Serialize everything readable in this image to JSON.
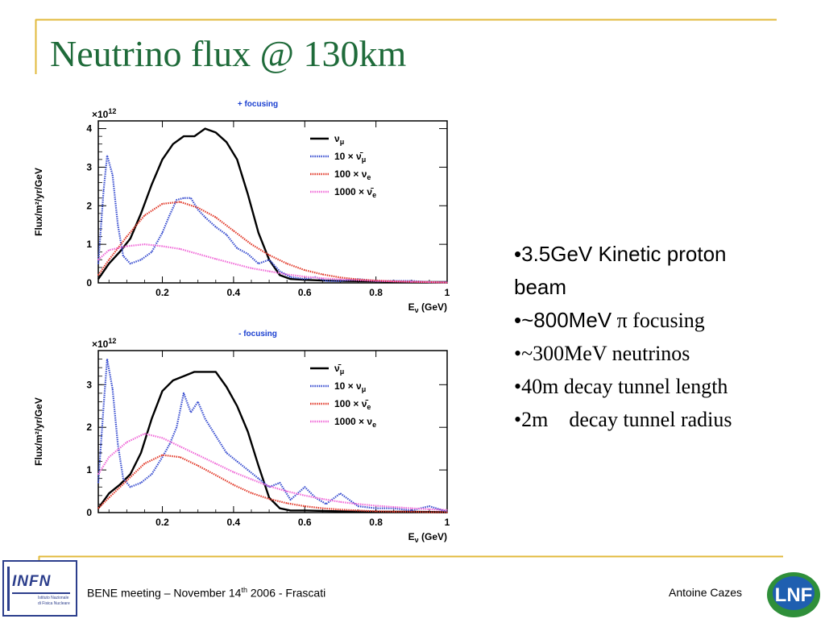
{
  "slide": {
    "title": "Neutrino flux @ 130km",
    "accent_color": "#e2b93b",
    "title_color": "#1f6b3a"
  },
  "bullets": [
    {
      "parts": [
        "•",
        "3.5GeV Kinetic proton"
      ],
      "style": "sans"
    },
    {
      "parts": [
        "beam"
      ],
      "style": "sans"
    },
    {
      "parts": [
        "•",
        "~800MeV",
        " π focusing"
      ],
      "style": "mixed"
    },
    {
      "parts": [
        "•",
        "~300MeV neutrinos"
      ],
      "style": "serif"
    },
    {
      "parts": [
        "•",
        "40m decay tunnel length"
      ],
      "style": "serif"
    },
    {
      "parts": [
        "•",
        "2m    decay tunnel radius"
      ],
      "style": "serif"
    }
  ],
  "footer": {
    "meeting_prefix": "BENE meeting – November 14",
    "meeting_sup": "th",
    "meeting_suffix": " 2006 - Frascati",
    "author": "Antoine Cazes",
    "logo_left": "INFN",
    "logo_left_sub1": "Istituto Nazionale",
    "logo_left_sub2": "di Fisica Nucleare",
    "logo_right": "LNF"
  },
  "chart_data": [
    {
      "type": "line",
      "title": "+ focusing",
      "xlabel_main": "E",
      "xlabel_sub": "ν",
      "xlabel_rest": " (GeV)",
      "ylabel": "Flux/m²/yr/GeV",
      "yscale_label": "×10",
      "yscale_exp": "12",
      "xlim": [
        0.02,
        1.0
      ],
      "ylim": [
        0,
        4.2
      ],
      "xticks": [
        0.2,
        0.4,
        0.6,
        0.8,
        1
      ],
      "xtick_labels": [
        "0.2",
        "0.4",
        "0.6",
        "0.8",
        "1"
      ],
      "yticks": [
        0,
        1,
        2,
        3,
        4
      ],
      "ytick_labels": [
        "0",
        "1",
        "2",
        "3",
        "4"
      ],
      "legend_position": "top-right",
      "series": [
        {
          "name": "νμ",
          "label_parts": [
            "",
            "ν",
            "μ",
            ""
          ],
          "color": "#000000",
          "style": "solid",
          "x": [
            0.02,
            0.05,
            0.08,
            0.11,
            0.14,
            0.17,
            0.2,
            0.23,
            0.26,
            0.29,
            0.32,
            0.35,
            0.38,
            0.41,
            0.44,
            0.47,
            0.5,
            0.53,
            0.56,
            0.6,
            0.65,
            0.7,
            0.8,
            0.9,
            1.0
          ],
          "y": [
            0.1,
            0.5,
            0.8,
            1.15,
            1.8,
            2.55,
            3.2,
            3.6,
            3.8,
            3.8,
            4.0,
            3.9,
            3.65,
            3.2,
            2.3,
            1.3,
            0.6,
            0.2,
            0.1,
            0.08,
            0.06,
            0.05,
            0.04,
            0.02,
            0.02
          ]
        },
        {
          "name": "10×ν̄μ",
          "label_parts": [
            "10 × ",
            "ν̄",
            "μ",
            ""
          ],
          "color": "#3a4fd0",
          "style": "dotted",
          "x": [
            0.02,
            0.035,
            0.045,
            0.06,
            0.075,
            0.09,
            0.11,
            0.14,
            0.17,
            0.2,
            0.22,
            0.24,
            0.26,
            0.28,
            0.3,
            0.32,
            0.35,
            0.38,
            0.41,
            0.44,
            0.47,
            0.5,
            0.53,
            0.56,
            0.6,
            0.63,
            0.66,
            0.7,
            0.75,
            0.8,
            0.85,
            0.9,
            0.95,
            1.0
          ],
          "y": [
            0.5,
            2.4,
            3.3,
            2.8,
            1.5,
            0.7,
            0.5,
            0.6,
            0.8,
            1.3,
            1.75,
            2.15,
            2.2,
            2.2,
            1.9,
            1.7,
            1.45,
            1.25,
            0.9,
            0.75,
            0.5,
            0.6,
            0.3,
            0.15,
            0.1,
            0.15,
            0.05,
            0.05,
            0.1,
            0.05,
            0.05,
            0.05,
            0.02,
            0.02
          ]
        },
        {
          "name": "100×νe",
          "label_parts": [
            "100 × ",
            "ν",
            "e",
            ""
          ],
          "color": "#e23a2a",
          "style": "dotted",
          "x": [
            0.02,
            0.05,
            0.1,
            0.15,
            0.2,
            0.25,
            0.3,
            0.35,
            0.4,
            0.45,
            0.5,
            0.55,
            0.6,
            0.65,
            0.7,
            0.75,
            0.8,
            0.85,
            0.9,
            0.95,
            1.0
          ],
          "y": [
            0.2,
            0.6,
            1.2,
            1.75,
            2.05,
            2.1,
            1.95,
            1.7,
            1.35,
            1.0,
            0.72,
            0.5,
            0.33,
            0.22,
            0.14,
            0.09,
            0.06,
            0.04,
            0.03,
            0.02,
            0.01
          ]
        },
        {
          "name": "1000×ν̄e",
          "label_parts": [
            "1000 × ",
            "ν̄",
            "e",
            ""
          ],
          "color": "#f06ad8",
          "style": "dotted",
          "x": [
            0.02,
            0.05,
            0.1,
            0.15,
            0.2,
            0.25,
            0.3,
            0.35,
            0.4,
            0.45,
            0.5,
            0.55,
            0.6,
            0.65,
            0.7,
            0.75,
            0.8,
            0.85,
            0.9,
            0.95,
            1.0
          ],
          "y": [
            0.6,
            0.85,
            0.95,
            1.0,
            0.95,
            0.88,
            0.75,
            0.62,
            0.5,
            0.38,
            0.3,
            0.22,
            0.16,
            0.12,
            0.09,
            0.07,
            0.05,
            0.04,
            0.03,
            0.02,
            0.01
          ]
        }
      ]
    },
    {
      "type": "line",
      "title": "- focusing",
      "xlabel_main": "E",
      "xlabel_sub": "ν",
      "xlabel_rest": " (GeV)",
      "ylabel": "Flux/m²/yr/GeV",
      "yscale_label": "×10",
      "yscale_exp": "12",
      "xlim": [
        0.02,
        1.0
      ],
      "ylim": [
        0,
        3.8
      ],
      "xticks": [
        0.2,
        0.4,
        0.6,
        0.8,
        1
      ],
      "xtick_labels": [
        "0.2",
        "0.4",
        "0.6",
        "0.8",
        "1"
      ],
      "yticks": [
        0,
        1,
        2,
        3
      ],
      "ytick_labels": [
        "0",
        "1",
        "2",
        "3"
      ],
      "legend_position": "top-right",
      "series": [
        {
          "name": "ν̄μ",
          "label_parts": [
            "",
            "ν̄",
            "μ",
            ""
          ],
          "color": "#000000",
          "style": "solid",
          "x": [
            0.02,
            0.05,
            0.08,
            0.11,
            0.14,
            0.17,
            0.2,
            0.23,
            0.26,
            0.29,
            0.32,
            0.35,
            0.38,
            0.41,
            0.44,
            0.47,
            0.5,
            0.53,
            0.56,
            0.6,
            0.65,
            0.7,
            0.8,
            0.9,
            1.0
          ],
          "y": [
            0.1,
            0.45,
            0.65,
            0.9,
            1.4,
            2.2,
            2.85,
            3.1,
            3.2,
            3.3,
            3.3,
            3.3,
            2.95,
            2.5,
            1.9,
            1.1,
            0.35,
            0.1,
            0.05,
            0.05,
            0.04,
            0.03,
            0.02,
            0.02,
            0.01
          ]
        },
        {
          "name": "10×νμ",
          "label_parts": [
            "10 × ",
            "ν",
            "μ",
            ""
          ],
          "color": "#3a4fd0",
          "style": "dotted",
          "x": [
            0.02,
            0.035,
            0.045,
            0.06,
            0.075,
            0.09,
            0.11,
            0.14,
            0.17,
            0.2,
            0.22,
            0.24,
            0.26,
            0.28,
            0.3,
            0.32,
            0.35,
            0.38,
            0.41,
            0.44,
            0.47,
            0.5,
            0.53,
            0.56,
            0.6,
            0.63,
            0.66,
            0.7,
            0.75,
            0.8,
            0.85,
            0.9,
            0.95,
            1.0
          ],
          "y": [
            0.7,
            2.5,
            3.6,
            2.9,
            1.6,
            0.8,
            0.6,
            0.7,
            0.9,
            1.3,
            1.6,
            2.0,
            2.8,
            2.35,
            2.6,
            2.2,
            1.8,
            1.4,
            1.2,
            1.0,
            0.8,
            0.6,
            0.7,
            0.3,
            0.6,
            0.35,
            0.2,
            0.45,
            0.15,
            0.1,
            0.1,
            0.05,
            0.15,
            0.02
          ]
        },
        {
          "name": "100×ν̄e",
          "label_parts": [
            "100 × ",
            "ν̄",
            "e",
            ""
          ],
          "color": "#e23a2a",
          "style": "dotted",
          "x": [
            0.02,
            0.05,
            0.1,
            0.15,
            0.2,
            0.25,
            0.3,
            0.35,
            0.4,
            0.45,
            0.5,
            0.55,
            0.6,
            0.65,
            0.7,
            0.75,
            0.8,
            0.85,
            0.9,
            0.95,
            1.0
          ],
          "y": [
            0.1,
            0.35,
            0.75,
            1.15,
            1.35,
            1.3,
            1.1,
            0.88,
            0.65,
            0.46,
            0.32,
            0.22,
            0.15,
            0.1,
            0.07,
            0.05,
            0.03,
            0.02,
            0.02,
            0.01,
            0.01
          ]
        },
        {
          "name": "1000×νe",
          "label_parts": [
            "1000 × ",
            "ν",
            "e",
            ""
          ],
          "color": "#f06ad8",
          "style": "dotted",
          "x": [
            0.02,
            0.05,
            0.1,
            0.15,
            0.2,
            0.25,
            0.3,
            0.35,
            0.4,
            0.45,
            0.5,
            0.55,
            0.6,
            0.65,
            0.7,
            0.75,
            0.8,
            0.85,
            0.9,
            0.95,
            1.0
          ],
          "y": [
            0.9,
            1.3,
            1.65,
            1.85,
            1.75,
            1.55,
            1.35,
            1.15,
            0.95,
            0.78,
            0.62,
            0.5,
            0.4,
            0.32,
            0.25,
            0.2,
            0.16,
            0.13,
            0.1,
            0.08,
            0.06
          ]
        }
      ]
    }
  ]
}
